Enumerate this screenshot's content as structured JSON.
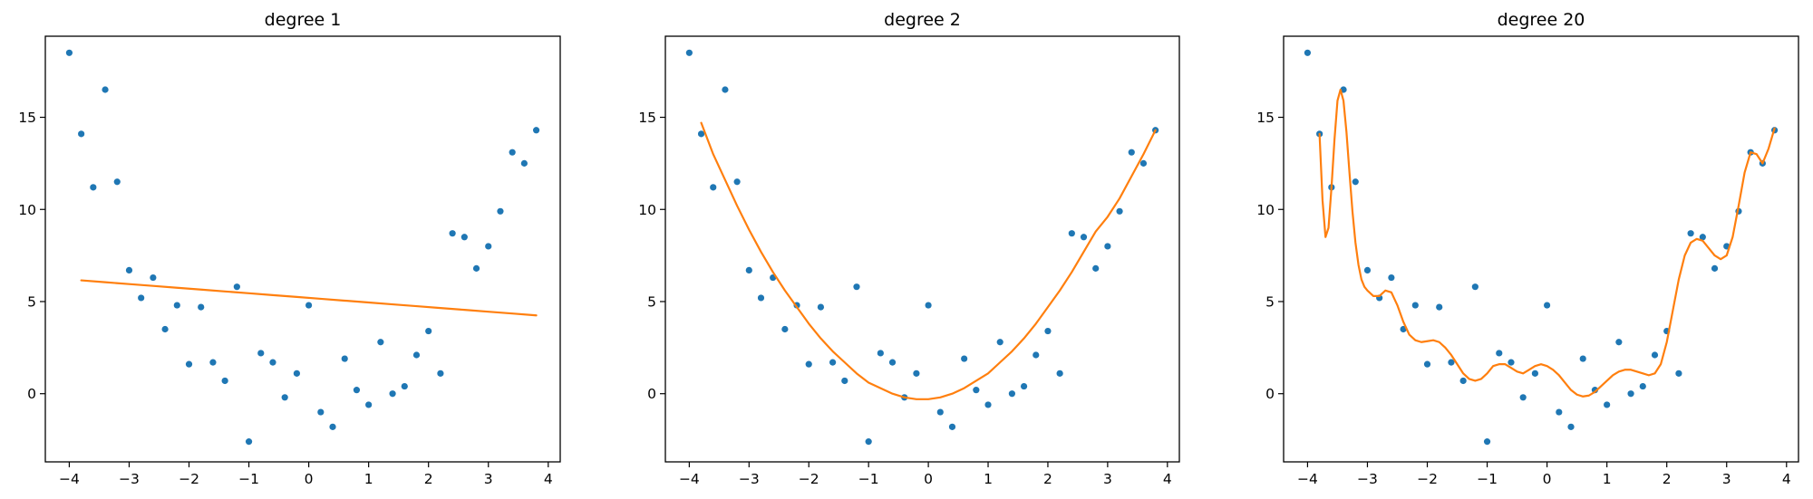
{
  "chart_data": {
    "type": "scatter",
    "colors": {
      "points": "#1f77b4",
      "fit": "#ff7f0e"
    },
    "shared": {
      "x": [
        -4.0,
        -3.8,
        -3.6,
        -3.4,
        -3.2,
        -3.0,
        -2.8,
        -2.6,
        -2.4,
        -2.2,
        -2.0,
        -1.8,
        -1.6,
        -1.4,
        -1.2,
        -1.0,
        -0.8,
        -0.6,
        -0.4,
        -0.2,
        0.0,
        0.2,
        0.4,
        0.6,
        0.8,
        1.0,
        1.2,
        1.4,
        1.6,
        1.8,
        2.0,
        2.2,
        2.4,
        2.6,
        2.8,
        3.0,
        3.2,
        3.4,
        3.6,
        3.8
      ],
      "y": [
        18.5,
        14.1,
        11.2,
        16.5,
        11.5,
        6.7,
        5.2,
        6.3,
        3.5,
        4.8,
        1.6,
        4.7,
        1.7,
        0.7,
        5.8,
        -2.6,
        2.2,
        1.7,
        -0.2,
        1.1,
        4.8,
        -1.0,
        -1.8,
        1.9,
        0.2,
        -0.6,
        2.8,
        0.0,
        0.4,
        2.1,
        3.4,
        1.1,
        8.7,
        8.5,
        6.8,
        8.0,
        9.9,
        13.1,
        12.5,
        14.3
      ],
      "xlim": [
        -4.4,
        4.2
      ],
      "ylim": [
        -3.7,
        19.4
      ],
      "xticks": [
        -4,
        -3,
        -2,
        -1,
        0,
        1,
        2,
        3,
        4
      ],
      "xtick_labels": [
        "−4",
        "−3",
        "−2",
        "−1",
        "0",
        "1",
        "2",
        "3",
        "4"
      ],
      "yticks": [
        0,
        5,
        10,
        15
      ],
      "ytick_labels": [
        "0",
        "5",
        "10",
        "15"
      ]
    },
    "panels": [
      {
        "title": "degree 1",
        "fit_x": [
          -3.8,
          -3.4,
          -3.0,
          -2.6,
          -2.2,
          -1.8,
          -1.4,
          -1.0,
          -0.6,
          -0.2,
          0.2,
          0.6,
          1.0,
          1.4,
          1.8,
          2.2,
          2.6,
          3.0,
          3.4,
          3.8
        ],
        "fit_y": [
          6.15,
          6.05,
          5.95,
          5.85,
          5.75,
          5.65,
          5.55,
          5.45,
          5.35,
          5.25,
          5.15,
          5.05,
          4.95,
          4.85,
          4.75,
          4.65,
          4.55,
          4.45,
          4.35,
          4.25
        ]
      },
      {
        "title": "degree 2",
        "fit_x": [
          -3.8,
          -3.6,
          -3.4,
          -3.2,
          -3.0,
          -2.8,
          -2.6,
          -2.4,
          -2.2,
          -2.0,
          -1.8,
          -1.6,
          -1.4,
          -1.2,
          -1.0,
          -0.8,
          -0.6,
          -0.4,
          -0.2,
          0.0,
          0.2,
          0.4,
          0.6,
          0.8,
          1.0,
          1.2,
          1.4,
          1.6,
          1.8,
          2.0,
          2.2,
          2.4,
          2.6,
          2.8,
          3.0,
          3.2,
          3.4,
          3.6,
          3.8
        ],
        "fit_y": [
          14.7,
          13.0,
          11.6,
          10.2,
          8.9,
          7.7,
          6.6,
          5.6,
          4.7,
          3.8,
          3.0,
          2.3,
          1.7,
          1.1,
          0.6,
          0.3,
          0.0,
          -0.2,
          -0.3,
          -0.3,
          -0.2,
          0.0,
          0.3,
          0.7,
          1.1,
          1.7,
          2.3,
          3.0,
          3.8,
          4.7,
          5.6,
          6.6,
          7.7,
          8.8,
          9.6,
          10.6,
          11.8,
          13.0,
          14.3
        ]
      },
      {
        "title": "degree 20",
        "fit_x": [
          -3.8,
          -3.75,
          -3.7,
          -3.65,
          -3.6,
          -3.55,
          -3.5,
          -3.45,
          -3.4,
          -3.35,
          -3.3,
          -3.25,
          -3.2,
          -3.15,
          -3.1,
          -3.05,
          -3.0,
          -2.9,
          -2.8,
          -2.7,
          -2.6,
          -2.5,
          -2.4,
          -2.3,
          -2.2,
          -2.1,
          -2.0,
          -1.9,
          -1.8,
          -1.7,
          -1.6,
          -1.5,
          -1.4,
          -1.3,
          -1.2,
          -1.1,
          -1.0,
          -0.9,
          -0.8,
          -0.7,
          -0.6,
          -0.5,
          -0.4,
          -0.3,
          -0.2,
          -0.1,
          0.0,
          0.1,
          0.2,
          0.3,
          0.4,
          0.5,
          0.6,
          0.7,
          0.8,
          0.9,
          1.0,
          1.1,
          1.2,
          1.3,
          1.4,
          1.5,
          1.6,
          1.7,
          1.8,
          1.9,
          2.0,
          2.1,
          2.2,
          2.3,
          2.4,
          2.5,
          2.6,
          2.7,
          2.8,
          2.9,
          3.0,
          3.1,
          3.2,
          3.3,
          3.4,
          3.5,
          3.6,
          3.7,
          3.8
        ],
        "fit_y": [
          14.1,
          10.5,
          8.5,
          9.0,
          11.2,
          13.8,
          15.9,
          16.5,
          15.9,
          14.2,
          12.0,
          9.9,
          8.2,
          7.0,
          6.2,
          5.8,
          5.6,
          5.3,
          5.3,
          5.6,
          5.5,
          4.8,
          3.9,
          3.2,
          2.9,
          2.8,
          2.85,
          2.9,
          2.8,
          2.5,
          2.1,
          1.6,
          1.1,
          0.8,
          0.7,
          0.8,
          1.1,
          1.5,
          1.6,
          1.6,
          1.4,
          1.2,
          1.1,
          1.3,
          1.5,
          1.6,
          1.5,
          1.3,
          1.0,
          0.6,
          0.2,
          -0.05,
          -0.15,
          -0.1,
          0.1,
          0.4,
          0.7,
          1.0,
          1.2,
          1.3,
          1.3,
          1.2,
          1.1,
          1.0,
          1.1,
          1.6,
          2.8,
          4.5,
          6.2,
          7.5,
          8.2,
          8.4,
          8.3,
          7.9,
          7.5,
          7.3,
          7.5,
          8.5,
          10.2,
          12.0,
          13.1,
          13.0,
          12.5,
          13.3,
          14.4
        ]
      }
    ]
  }
}
